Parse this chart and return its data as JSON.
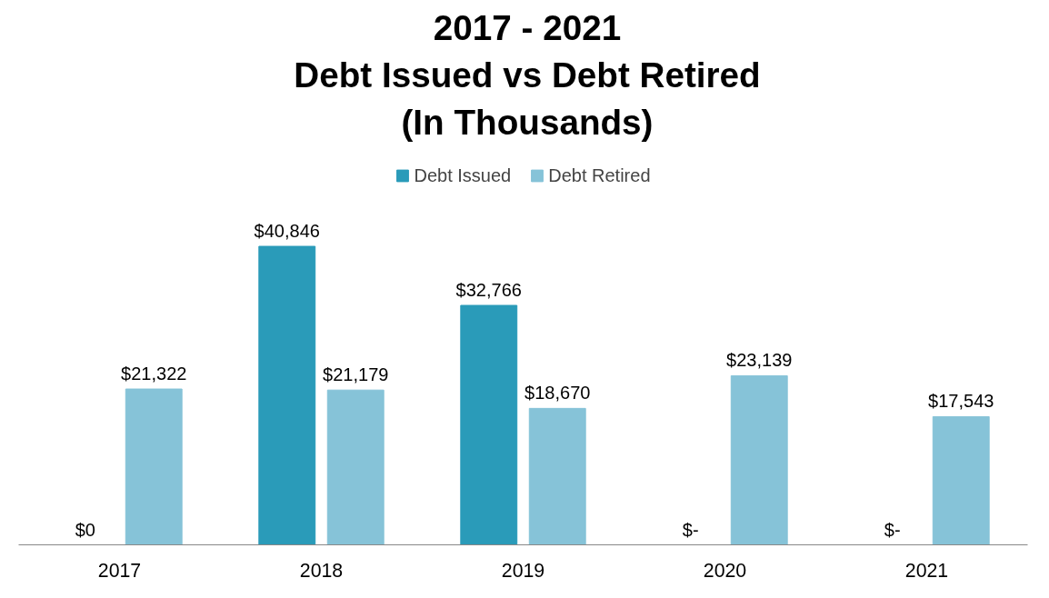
{
  "chart_data": {
    "type": "bar",
    "title": "2017 - 2021\nDebt Issued vs Debt Retired\n(In Thousands)",
    "categories": [
      "2017",
      "2018",
      "2019",
      "2020",
      "2021"
    ],
    "legend": "top",
    "grid": false,
    "series": [
      {
        "name": "Debt Issued",
        "color": "#2a9bb9",
        "values": [
          0,
          40846,
          32766,
          0,
          0
        ],
        "value_labels": [
          "$0",
          "$40,846",
          "$32,766",
          "$-",
          "$-"
        ]
      },
      {
        "name": "Debt Retired",
        "color": "#86c3d8",
        "values": [
          21322,
          21179,
          18670,
          23139,
          17543
        ],
        "value_labels": [
          "$21,322",
          "$21,179",
          "$18,670",
          "$23,139",
          "$17,543"
        ]
      }
    ]
  }
}
